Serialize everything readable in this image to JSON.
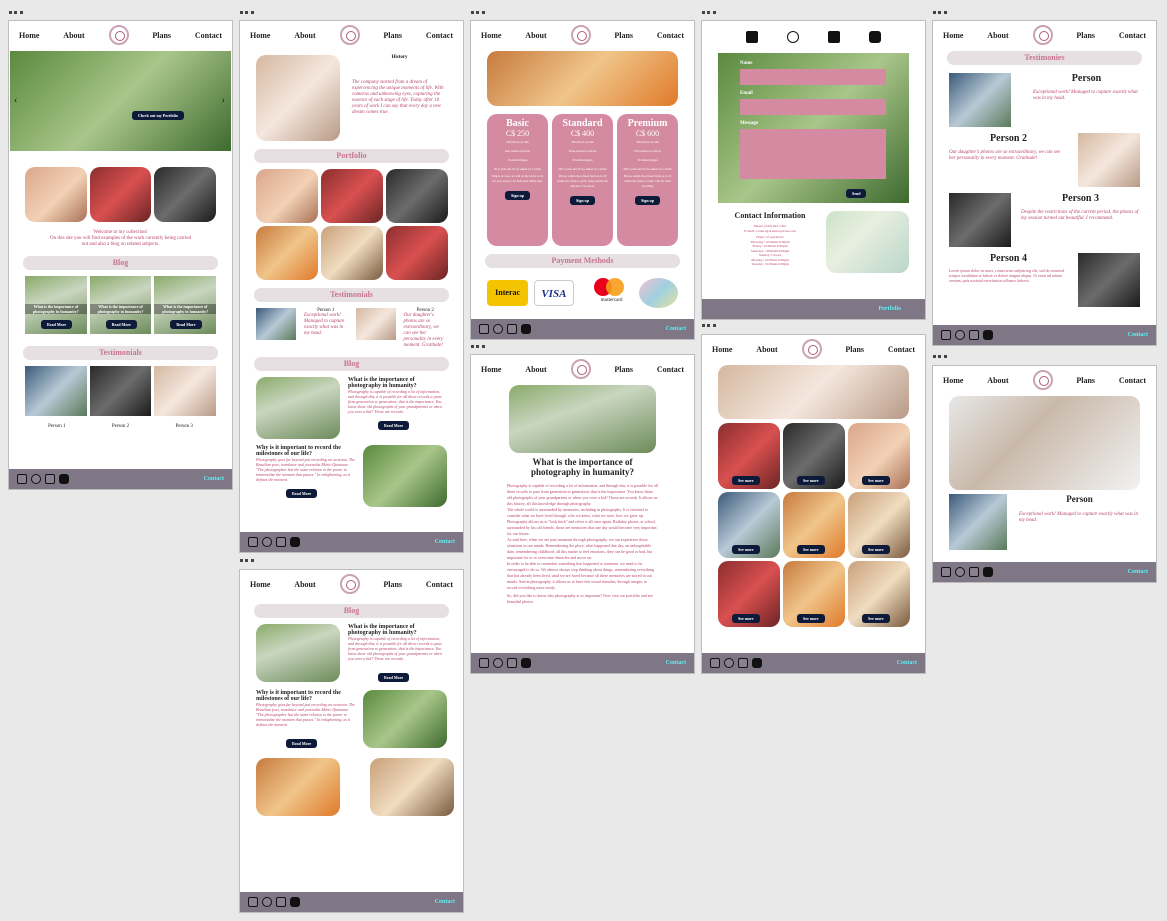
{
  "nav": {
    "home": "Home",
    "about": "About",
    "plans": "Plans",
    "contact": "Contact"
  },
  "footer_link": "Contact",
  "social_icons": [
    "facebook-icon",
    "instagram-icon",
    "linkedin-icon",
    "youtube-icon"
  ],
  "colors": {
    "accent": "#c9738e",
    "footer": "#7f7686",
    "footer_link": "#5ff0f5",
    "button": "#0d1a3a",
    "plan": "#d48aa0"
  },
  "home": {
    "hero_button": "Check out my Portfolio",
    "welcome_lines": [
      "Welcome to my collection!",
      "On this site you will find examples of the work currently being carried",
      "out and also a blog on related subjects."
    ],
    "blog_title": "Blog",
    "blog_items": [
      "What is the importance of photography in humanity?",
      "What is the importance of photography in humanity?",
      "What is the importance of photography in humanity?"
    ],
    "read_more": "Read More",
    "testimonials_title": "Testimonials",
    "persons": [
      "Person 1",
      "Person 2",
      "Person 3"
    ]
  },
  "about": {
    "history_title": "History",
    "history_text": "The company started from a dream of experiencing the unique moments of life. With cameras and unknowing eyes, capturing the essence of each stage of life. Today after 10 years of work I can say that every day a new dream comes true.",
    "portfolio_title": "Portfolio",
    "testimonials_title": "Testimonials",
    "t1_name": "Person 1",
    "t1_text": "Exceptional work! Managed to capture exactly what was in my head.",
    "t2_name": "Person 2",
    "t2_text": "Our daughter's photos are so extraordinary, we can see her personality in every moment. Gratitude!",
    "blog_title": "Blog",
    "b1_title": "What is the importance of photography in humanity?",
    "b1_text": "Photography is capable of recording a lot of information, and through this, it is possible for all these records to pass from generation to generation; that is the importance. You know those old photographs of your grandparents or when you were a kid? Those are records.",
    "b2_title": "Why is it important to record the milestones of our life?",
    "b2_text": "Photography goes far beyond just recording an occasion. The Brazilian poet, translator and journalist Mário Quintana: \"The photographer has the same relation to the poem: to immortalize the moment that passes.\" In enlightening, as it defines the moment.",
    "read_more": "Read More"
  },
  "plans": {
    "basic": {
      "name": "Basic",
      "price": "C$ 250",
      "lines": [
        "100 photos on link",
        "One session location",
        "10 edited images",
        "50 to pick and 10 are edited on a folder",
        "Simple process, we will do the whole work for you, ready to be delivered within days"
      ]
    },
    "standard": {
      "name": "Standard",
      "price": "C$ 400",
      "lines": [
        "300 photos on link",
        "Three session locations",
        "30 edited images",
        "100 to pick and 30 are edited on a folder",
        "Photos within the printed from up to 20 within the frame to print; being double the amount of locations"
      ]
    },
    "premium": {
      "name": "Premium",
      "price": "C$ 600",
      "lines": [
        "500 photos on link",
        "Five session locations",
        "50 edited images",
        "200 to pick and 50 are edited on a folder",
        "Photos within the printed from up to 20 within the frame to print; with all video recording"
      ]
    },
    "signup": "Sign up",
    "payment_title": "Payment Methods",
    "payments": [
      "Interac",
      "VISA",
      "mastercard"
    ]
  },
  "article": {
    "title": "What is the importance of photography in humanity?",
    "paragraphs": [
      "Photography is capable of recording a lot of information, and through this, it is possible for all these records to pass from generation to generation; that is the importance. You know those old photographs of your grandparents or when you were a kid? Those are records. It allows us this history, all this knowledge through photography.",
      "The whole world is surrounded by memories, including in photography. It is essential to consider what we have lived through, who we knew, what we were, how we grew up. Photography allows us to \"look back\" and relive it all once again. Birthday photos, at school, surrounded by his old friends, those are memories that one day would become very important for our future.",
      "As said here, when we see past moments through photography, we can experience those situations in our minds. Remembering the place, what happened that day, an unforgettable date, remembering childhood, all this matter to feel emotions, they can be good or bad, but important for us to overcome obstacles and move on.",
      "In order to be able to remember something that happened or someone, we need to be encouraged to do so. We almost always stop thinking about things, remembering everything that has already been lived, until we are faced because all these memories are stored in our minds. And in photography, it allows us to have this visual stimulus, through images, to record everything more easily.",
      "So, did you like to know why photography is so important? Now visit our portfolio and see beautiful photos"
    ]
  },
  "contact": {
    "form_name": "Name",
    "form_email": "Email",
    "form_message": "Message",
    "send": "Send",
    "info_title": "Contact Information",
    "info_lines": [
      "Phone: (343) 923-7441",
      "E-mail: contact@artisticoptions.com",
      "Hours of operation:",
      "Thursday: 10:00am-6:30pm",
      "Friday: 10:00am-6:30pm",
      "Saturday: 10:00am-6:00pm",
      "Sunday: Closed",
      "Monday: 10:00am-6:00pm",
      "Tuesday: 10:00am-6:00pm"
    ],
    "footer_link": "Portfolio"
  },
  "portfolio": {
    "see_more": "See more"
  },
  "testimonials_page": {
    "title": "Testimonies",
    "p1_name": "Person",
    "p1_text": "Exceptional work! Managed to capture exactly what was in my head.",
    "p2_name": "Person 2",
    "p2_text": "Our daughter's photos are so extraordinary, we can see her personality in every moment. Gratitude!",
    "p3_name": "Person 3",
    "p3_text": "Despite the restrictions of the current period, the photos of my session turned out beautiful. I recommend.",
    "p4_name": "Person 4",
    "p4_text": "Lorem ipsum dolor sit amet, consectetur adipiscing elit, sed do eiusmod tempor incididunt ut labore et dolore magna aliqua. Ut enim ad minim veniam, quis nostrud exercitation ullamco laboris."
  },
  "single_testimonial": {
    "name": "Person",
    "text": "Exceptional work! Managed to capture exactly what was in my head."
  }
}
